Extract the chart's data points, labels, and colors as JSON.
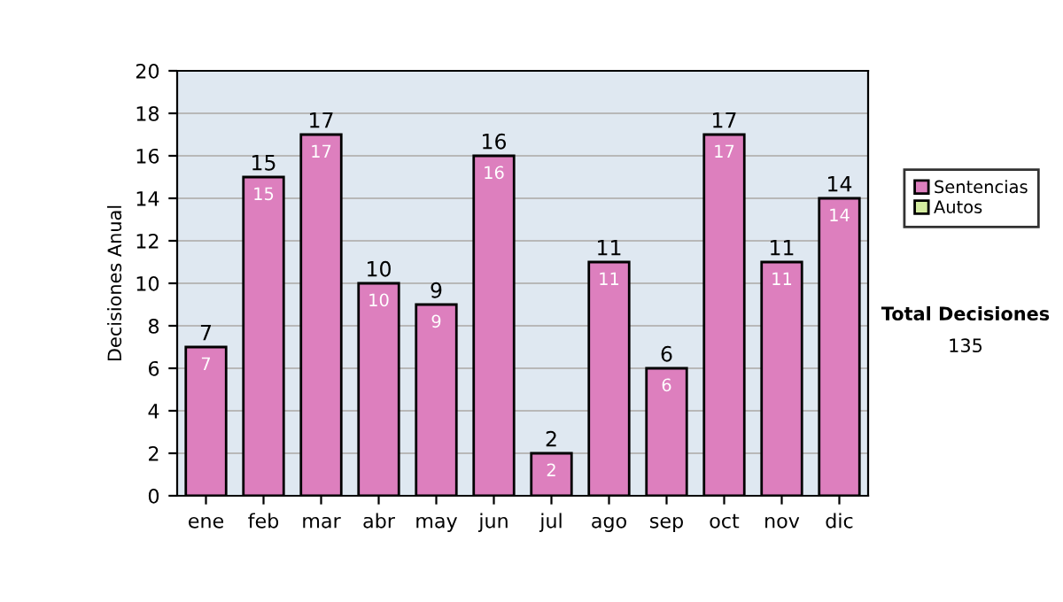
{
  "chart_data": {
    "type": "bar",
    "ylabel": "Decisiones Anual",
    "categories": [
      "ene",
      "feb",
      "mar",
      "abr",
      "may",
      "jun",
      "jul",
      "ago",
      "sep",
      "oct",
      "nov",
      "dic"
    ],
    "series": [
      {
        "name": "Sentencias",
        "color": "#dd7fbe",
        "values": [
          7,
          15,
          17,
          10,
          9,
          16,
          2,
          11,
          6,
          17,
          11,
          14
        ],
        "value_labels": [
          "7",
          "15",
          "17",
          "10",
          "9",
          "16",
          "2",
          "11",
          "6",
          "17",
          "11",
          "14"
        ]
      },
      {
        "name": "Autos",
        "color": "#d4eca0",
        "values": [
          0,
          0,
          0,
          0,
          0,
          0,
          0,
          0,
          0,
          0,
          0,
          0
        ]
      }
    ],
    "stacked": true,
    "totals": [
      "7",
      "15",
      "17",
      "10",
      "9",
      "16",
      "2",
      "11",
      "6",
      "17",
      "11",
      "14"
    ],
    "ylim": [
      0,
      20
    ],
    "yticks": [
      0,
      2,
      4,
      6,
      8,
      10,
      12,
      14,
      16,
      18,
      20
    ],
    "grid": "y",
    "legend": "right",
    "annotations": [
      "Total Decisiones",
      "135"
    ]
  }
}
